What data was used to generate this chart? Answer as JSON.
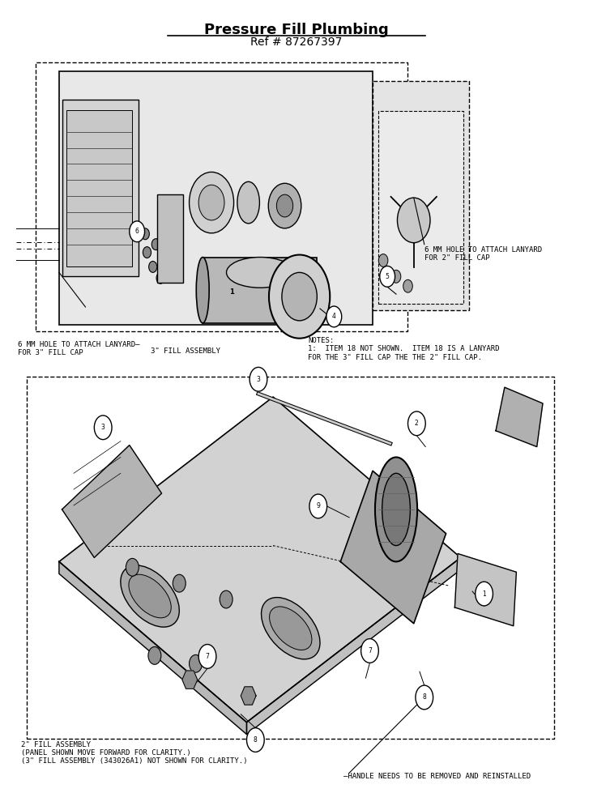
{
  "title": "Pressure Fill Plumbing",
  "subtitle": "Ref # 87267397",
  "title_fontsize": 13,
  "subtitle_fontsize": 10,
  "bg_color": "#ffffff",
  "text_color": "#000000",
  "annotation_fontsize": 6.5,
  "fig_width": 7.32,
  "fig_height": 10.0,
  "top_ann_6mm_right": "6 MM HOLE TO ATTACH LANYARD\nFOR 2\" FILL CAP",
  "top_ann_3fill": "3\" FILL ASSEMBLY",
  "top_ann_6mm_left_line1": "6 MM HOLE TO ATTACH LANYARD—",
  "top_ann_6mm_left_line2": "FOR 3\" FILL CAP",
  "top_ann_notes": "NOTES:\n1:  ITEM 18 NOT SHOWN.  ITEM 18 IS A LANYARD\nFOR THE 3\" FILL CAP THE THE 2\" FILL CAP.",
  "bot_ann_2fill": "2\" FILL ASSEMBLY\n(PANEL SHOWN MOVE FORWARD FOR CLARITY.)\n(3\" FILL ASSEMBLY (343026A1) NOT SHOWN FOR CLARITY.)",
  "bot_ann_handle": "—HANDLE NEEDS TO BE REMOVED AND REINSTALLED"
}
